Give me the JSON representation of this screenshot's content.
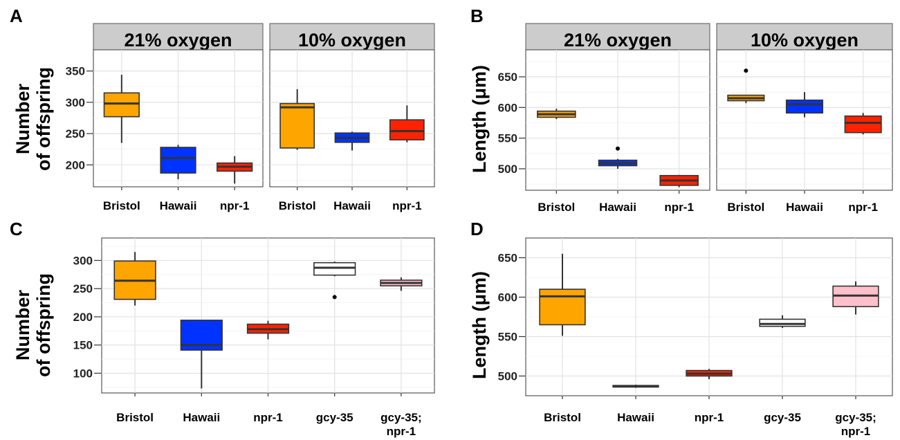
{
  "chart_data": [
    {
      "panel": "A",
      "type": "box",
      "ylabel_lines": [
        "Number",
        "of offspring"
      ],
      "ylim": [
        165,
        375
      ],
      "yticks": [
        200,
        250,
        300,
        350
      ],
      "facets": [
        {
          "label": "21% oxygen",
          "categories": [
            "Bristol",
            "Hawaii",
            "npr-1"
          ],
          "boxes": [
            {
              "min": 235,
              "q1": 277,
              "median": 298,
              "q3": 315,
              "max": 344,
              "color": "#FFA500",
              "outliers": []
            },
            {
              "min": 177,
              "q1": 187,
              "median": 211,
              "q3": 228,
              "max": 232,
              "color": "#0033FF",
              "outliers": []
            },
            {
              "min": 170,
              "q1": 190,
              "median": 197,
              "q3": 203,
              "max": 214,
              "color": "#FF2200",
              "outliers": []
            }
          ]
        },
        {
          "label": "10% oxygen",
          "categories": [
            "Bristol",
            "Hawaii",
            "npr-1"
          ],
          "boxes": [
            {
              "min": 224,
              "q1": 227,
              "median": 292,
              "q3": 298,
              "max": 321,
              "color": "#FFA500",
              "outliers": []
            },
            {
              "min": 223,
              "q1": 236,
              "median": 243,
              "q3": 251,
              "max": 253,
              "color": "#0033FF",
              "outliers": []
            },
            {
              "min": 236,
              "q1": 240,
              "median": 254,
              "q3": 272,
              "max": 295,
              "color": "#FF2200",
              "outliers": []
            }
          ]
        }
      ]
    },
    {
      "panel": "B",
      "type": "box",
      "ylabel_lines": [
        "Length (μm)"
      ],
      "ylim": [
        465,
        685
      ],
      "yticks": [
        500,
        550,
        600,
        650
      ],
      "facets": [
        {
          "label": "21% oxygen",
          "categories": [
            "Bristol",
            "Hawaii",
            "npr-1"
          ],
          "boxes": [
            {
              "min": 581,
              "q1": 584,
              "median": 589,
              "q3": 594,
              "max": 598,
              "color": "#FFA500",
              "outliers": []
            },
            {
              "min": 500,
              "q1": 505,
              "median": 509,
              "q3": 514,
              "max": 516,
              "color": "#0033FF",
              "outliers": [
                533
              ]
            },
            {
              "min": 470,
              "q1": 473,
              "median": 481,
              "q3": 489,
              "max": 490,
              "color": "#FF2200",
              "outliers": []
            }
          ]
        },
        {
          "label": "10% oxygen",
          "categories": [
            "Bristol",
            "Hawaii",
            "npr-1"
          ],
          "boxes": [
            {
              "min": 607,
              "q1": 611,
              "median": 615,
              "q3": 620,
              "max": 620,
              "color": "#FFA500",
              "outliers": [
                660
              ]
            },
            {
              "min": 584,
              "q1": 591,
              "median": 605,
              "q3": 612,
              "max": 625,
              "color": "#0033FF",
              "outliers": []
            },
            {
              "min": 556,
              "q1": 559,
              "median": 575,
              "q3": 586,
              "max": 591,
              "color": "#FF2200",
              "outliers": []
            }
          ]
        }
      ]
    },
    {
      "panel": "C",
      "type": "box",
      "ylabel_lines": [
        "Number",
        "of offspring"
      ],
      "ylim": [
        65,
        330
      ],
      "yticks": [
        100,
        150,
        200,
        250,
        300
      ],
      "facets": [
        {
          "label": "",
          "categories": [
            "Bristol",
            "Hawaii",
            "npr-1",
            "gcy-35",
            "gcy-35;|npr-1"
          ],
          "boxes": [
            {
              "min": 220,
              "q1": 231,
              "median": 264,
              "q3": 299,
              "max": 315,
              "color": "#FFA500",
              "outliers": []
            },
            {
              "min": 73,
              "q1": 141,
              "median": 150,
              "q3": 194,
              "max": 194,
              "color": "#0033FF",
              "outliers": []
            },
            {
              "min": 160,
              "q1": 171,
              "median": 178,
              "q3": 187,
              "max": 193,
              "color": "#FF2200",
              "outliers": []
            },
            {
              "min": 272,
              "q1": 274,
              "median": 287,
              "q3": 296,
              "max": 298,
              "color": "#FFFFFF",
              "outliers": [
                235
              ]
            },
            {
              "min": 246,
              "q1": 255,
              "median": 260,
              "q3": 265,
              "max": 270,
              "color": "#FFC0CB",
              "outliers": []
            }
          ]
        }
      ]
    },
    {
      "panel": "D",
      "type": "box",
      "ylabel_lines": [
        "Length (μm)"
      ],
      "ylim": [
        475,
        668
      ],
      "yticks": [
        500,
        550,
        600,
        650
      ],
      "facets": [
        {
          "label": "",
          "categories": [
            "Bristol",
            "Hawaii",
            "npr-1",
            "gcy-35",
            "gcy-35;|npr-1"
          ],
          "boxes": [
            {
              "min": 551,
              "q1": 565,
              "median": 601,
              "q3": 610,
              "max": 655,
              "color": "#FFA500",
              "outliers": []
            },
            {
              "min": 485,
              "q1": 486,
              "median": 487,
              "q3": 488,
              "max": 489,
              "color": "#0033FF",
              "outliers": []
            },
            {
              "min": 496,
              "q1": 500,
              "median": 503,
              "q3": 507,
              "max": 509,
              "color": "#FF2200",
              "outliers": []
            },
            {
              "min": 561,
              "q1": 563,
              "median": 566,
              "q3": 572,
              "max": 577,
              "color": "#FFFFFF",
              "outliers": []
            },
            {
              "min": 578,
              "q1": 588,
              "median": 602,
              "q3": 614,
              "max": 620,
              "color": "#FFC0CB",
              "outliers": []
            }
          ]
        }
      ]
    }
  ]
}
